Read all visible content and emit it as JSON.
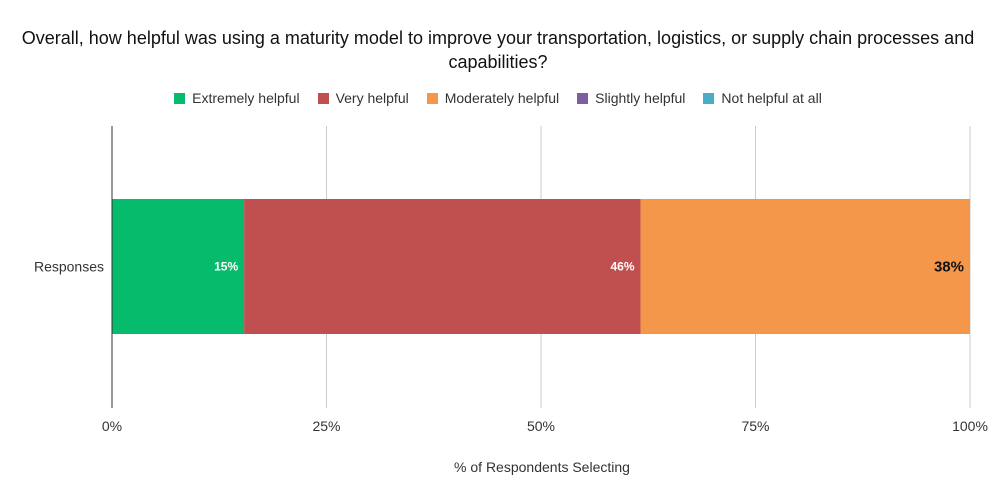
{
  "title": "Overall, how helpful was using a maturity model to improve your transportation, logistics, or supply chain processes and capabilities?",
  "legend": [
    {
      "label": "Extremely helpful",
      "color": "#06bb6c"
    },
    {
      "label": "Very helpful",
      "color": "#c05050"
    },
    {
      "label": "Moderately helpful",
      "color": "#f5974a"
    },
    {
      "label": "Slightly helpful",
      "color": "#7e5ea0"
    },
    {
      "label": "Not helpful at all",
      "color": "#4bacc6"
    }
  ],
  "chart_data": {
    "type": "bar",
    "orientation": "horizontal",
    "stacked": true,
    "categories": [
      "Responses"
    ],
    "series": [
      {
        "name": "Extremely helpful",
        "values": [
          15.4
        ],
        "label": "15%",
        "color": "#06bb6c",
        "label_color": "#ffffff"
      },
      {
        "name": "Very helpful",
        "values": [
          46.2
        ],
        "label": "46%",
        "color": "#c05050",
        "label_color": "#ffffff"
      },
      {
        "name": "Moderately helpful",
        "values": [
          38.4
        ],
        "label": "38%",
        "color": "#f5974a",
        "label_color": "#111111"
      },
      {
        "name": "Slightly helpful",
        "values": [
          0
        ],
        "label": "",
        "color": "#7e5ea0",
        "label_color": "#ffffff"
      },
      {
        "name": "Not helpful at all",
        "values": [
          0
        ],
        "label": "",
        "color": "#4bacc6",
        "label_color": "#ffffff"
      }
    ],
    "xlim": [
      0,
      100
    ],
    "xticks": [
      "0%",
      "25%",
      "50%",
      "75%",
      "100%"
    ],
    "xlabel": "% of Respondents Selecting",
    "ylabel": "",
    "grid": true,
    "legend_position": "top"
  }
}
